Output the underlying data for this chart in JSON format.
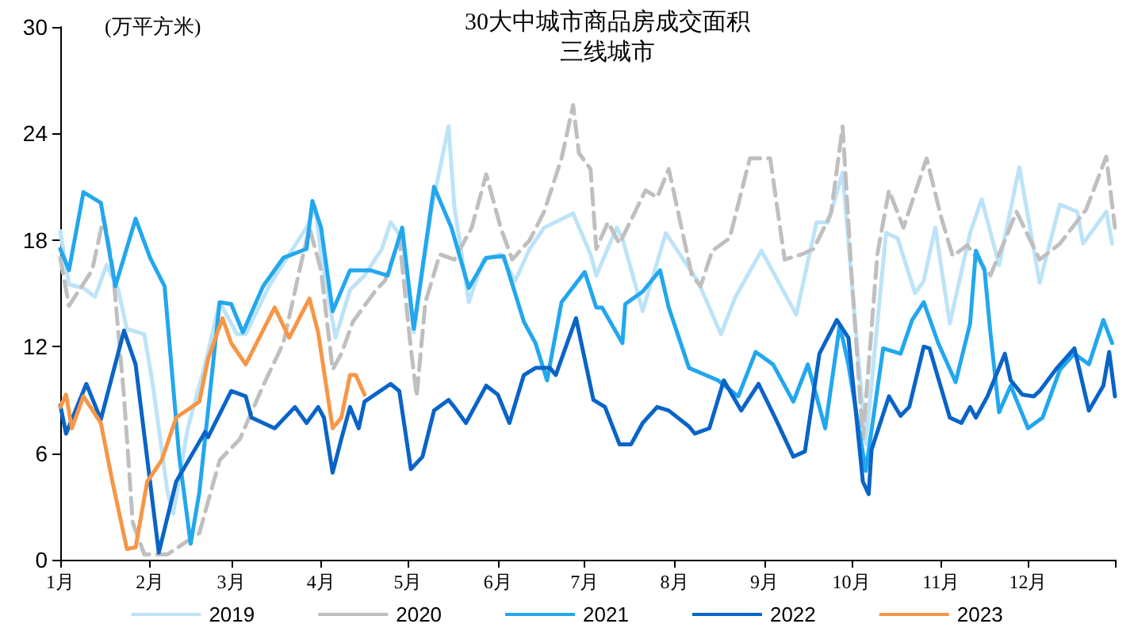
{
  "chart_data": {
    "type": "line",
    "title": "30大中城市商品房成交面积",
    "subtitle": "三线城市",
    "ylabel": "(万平方米)",
    "xlim": [
      "--01-01",
      "--12-31"
    ],
    "xticks": [
      {
        "value": "--01-01",
        "label": "1月"
      },
      {
        "value": "--02-01",
        "label": "2月"
      },
      {
        "value": "--03-01",
        "label": "3月"
      },
      {
        "value": "--04-01",
        "label": "4月"
      },
      {
        "value": "--05-01",
        "label": "5月"
      },
      {
        "value": "--06-01",
        "label": "6月"
      },
      {
        "value": "--07-01",
        "label": "7月"
      },
      {
        "value": "--08-01",
        "label": "8月"
      },
      {
        "value": "--09-01",
        "label": "9月"
      },
      {
        "value": "--10-01",
        "label": "10月"
      },
      {
        "value": "--11-01",
        "label": "11月"
      },
      {
        "value": "--12-01",
        "label": "12月"
      },
      {
        "value": "--12-31",
        "label": null
      }
    ],
    "ylim": [
      0,
      30
    ],
    "yticks": [
      0,
      6,
      12,
      18,
      24,
      30
    ],
    "grid": false,
    "legend": "bottom",
    "marker": "none",
    "line_style": "solid",
    "series": [
      {
        "name": "2019",
        "color": "#bde3f8",
        "x": [
          "--01-01",
          "--01-04",
          "--01-09",
          "--01-13",
          "--01-17",
          "--01-21",
          "--01-24",
          "--01-30",
          "--02-02",
          "--02-07",
          "--02-09",
          "--02-14",
          "--02-20",
          "--02-25",
          "--03-03",
          "--03-06",
          "--03-14",
          "--03-21",
          "--03-27",
          "--03-30",
          "--04-01",
          "--04-06",
          "--04-11",
          "--04-16",
          "--04-22",
          "--04-25",
          "--04-29",
          "--05-03",
          "--05-09",
          "--05-15",
          "--05-17",
          "--05-22",
          "--05-27",
          "--06-02",
          "--06-07",
          "--06-12",
          "--06-17",
          "--06-27",
          "--07-03",
          "--07-05",
          "--07-12",
          "--07-14",
          "--07-21",
          "--07-29",
          "--08-04",
          "--08-09",
          "--08-17",
          "--08-22",
          "--08-31",
          "--09-06",
          "--09-12",
          "--09-19",
          "--09-23",
          "--09-28",
          "--10-02",
          "--10-06",
          "--10-13",
          "--10-17",
          "--10-23",
          "--10-26",
          "--10-30",
          "--11-04",
          "--11-11",
          "--11-15",
          "--11-21",
          "--11-28",
          "--12-05",
          "--12-12",
          "--12-18",
          "--12-20",
          "--12-28",
          "--12-30"
        ],
        "values": [
          18.5,
          15.5,
          15.3,
          14.8,
          16.6,
          15.2,
          13.0,
          12.7,
          9.8,
          3.8,
          2.6,
          7.4,
          11.0,
          14.5,
          12.7,
          12.7,
          15.4,
          17.2,
          18.7,
          19.9,
          17.2,
          12.5,
          15.2,
          16.0,
          17.5,
          19.0,
          18.1,
          12.8,
          19.6,
          24.4,
          19.9,
          14.5,
          16.9,
          17.2,
          15.7,
          17.5,
          18.7,
          19.5,
          17.2,
          16.0,
          18.7,
          18.1,
          14.0,
          18.4,
          16.9,
          15.7,
          12.7,
          14.8,
          17.4,
          15.6,
          13.8,
          19.0,
          19.0,
          21.8,
          14.0,
          6.5,
          18.4,
          18.1,
          15.0,
          15.7,
          18.7,
          13.3,
          18.4,
          20.3,
          16.6,
          22.1,
          15.6,
          20.0,
          19.6,
          17.8,
          19.6,
          17.8
        ]
      },
      {
        "name": "2020",
        "color": "#bfbfbf",
        "line_style": "dashed",
        "x": [
          "--01-01",
          "--01-04",
          "--01-12",
          "--01-16",
          "--01-19",
          "--01-23",
          "--01-26",
          "--01-30",
          "--02-07",
          "--02-18",
          "--02-25",
          "--03-04",
          "--03-12",
          "--03-19",
          "--03-25",
          "--03-28",
          "--04-01",
          "--04-05",
          "--04-08",
          "--04-12",
          "--04-20",
          "--04-23",
          "--04-28",
          "--05-02",
          "--05-04",
          "--05-07",
          "--05-12",
          "--05-17",
          "--05-23",
          "--05-28",
          "--06-02",
          "--06-06",
          "--06-12",
          "--06-17",
          "--06-23",
          "--06-27",
          "--06-29",
          "--07-03",
          "--07-05",
          "--07-09",
          "--07-13",
          "--07-22",
          "--07-26",
          "--07-30",
          "--08-07",
          "--08-10",
          "--08-14",
          "--08-20",
          "--08-27",
          "--09-03",
          "--09-08",
          "--09-14",
          "--09-18",
          "--09-24",
          "--09-28",
          "--10-01",
          "--10-05",
          "--10-10",
          "--10-14",
          "--10-19",
          "--10-27",
          "--11-01",
          "--11-05",
          "--11-10",
          "--11-18",
          "--11-27",
          "--12-05",
          "--12-12",
          "--12-21",
          "--12-28",
          "--12-31"
        ],
        "values": [
          17.0,
          14.3,
          16.3,
          19.3,
          16.6,
          9.2,
          2.1,
          0.3,
          0.3,
          1.5,
          5.6,
          6.8,
          9.8,
          12.2,
          16.6,
          18.7,
          16.3,
          10.7,
          11.6,
          13.4,
          15.2,
          15.7,
          18.1,
          11.9,
          9.2,
          14.5,
          17.2,
          16.9,
          18.7,
          21.7,
          18.7,
          16.9,
          18.0,
          19.6,
          22.6,
          25.6,
          22.9,
          22.0,
          17.5,
          19.0,
          17.8,
          20.8,
          20.4,
          22.0,
          16.0,
          15.4,
          17.4,
          18.1,
          22.6,
          22.6,
          16.9,
          17.2,
          17.5,
          19.5,
          24.4,
          16.3,
          6.8,
          17.2,
          20.8,
          18.7,
          22.6,
          19.3,
          17.1,
          17.7,
          16.0,
          19.6,
          16.9,
          17.8,
          19.7,
          22.7,
          18.7
        ]
      },
      {
        "name": "2021",
        "color": "#22a7ee",
        "x": [
          "--01-01",
          "--01-04",
          "--01-09",
          "--01-15",
          "--01-20",
          "--01-27",
          "--02-01",
          "--02-06",
          "--02-11",
          "--02-15",
          "--02-18",
          "--02-25",
          "--03-01",
          "--03-05",
          "--03-12",
          "--03-19",
          "--03-27",
          "--03-29",
          "--04-01",
          "--04-05",
          "--04-11",
          "--04-18",
          "--04-24",
          "--04-29",
          "--05-03",
          "--05-10",
          "--05-16",
          "--05-22",
          "--05-28",
          "--06-03",
          "--06-10",
          "--06-14",
          "--06-18",
          "--06-23",
          "--07-01",
          "--07-05",
          "--07-07",
          "--07-14",
          "--07-15",
          "--07-21",
          "--07-27",
          "--07-30",
          "--08-06",
          "--08-16",
          "--08-23",
          "--08-29",
          "--09-04",
          "--09-11",
          "--09-16",
          "--09-22",
          "--09-27",
          "--09-30",
          "--10-06",
          "--10-12",
          "--10-18",
          "--10-22",
          "--10-26",
          "--10-31",
          "--11-06",
          "--11-11",
          "--11-13",
          "--11-16",
          "--11-18",
          "--11-21",
          "--11-25",
          "--12-01",
          "--12-06",
          "--12-12",
          "--12-17",
          "--12-22",
          "--12-27",
          "--12-30"
        ],
        "values": [
          17.5,
          16.3,
          20.7,
          20.1,
          15.4,
          19.2,
          17.0,
          15.4,
          5.9,
          0.9,
          3.8,
          14.5,
          14.4,
          12.8,
          15.4,
          17.0,
          17.5,
          20.2,
          18.7,
          14.0,
          16.3,
          16.3,
          16.0,
          18.7,
          13.0,
          21.0,
          18.7,
          15.3,
          17.0,
          17.1,
          13.4,
          12.2,
          10.1,
          14.5,
          16.2,
          14.2,
          14.2,
          12.2,
          14.4,
          15.1,
          16.3,
          14.2,
          10.8,
          10.1,
          9.2,
          11.7,
          11.0,
          8.9,
          11.0,
          7.4,
          13.2,
          11.0,
          5.0,
          11.9,
          11.6,
          13.5,
          14.5,
          12.2,
          10.0,
          13.3,
          17.4,
          16.3,
          12.8,
          8.3,
          9.8,
          7.4,
          8.0,
          10.7,
          11.6,
          11.0,
          13.5,
          12.2
        ]
      },
      {
        "name": "2022",
        "color": "#0a64c8",
        "x": [
          "--01-01",
          "--01-03",
          "--01-10",
          "--01-15",
          "--01-23",
          "--01-27",
          "--02-04",
          "--02-10",
          "--02-20",
          "--02-21",
          "--03-01",
          "--03-06",
          "--03-08",
          "--03-16",
          "--03-23",
          "--03-27",
          "--03-31",
          "--04-02",
          "--04-05",
          "--04-08",
          "--04-11",
          "--04-14",
          "--04-16",
          "--04-25",
          "--04-28",
          "--05-02",
          "--05-06",
          "--05-10",
          "--05-15",
          "--05-17",
          "--05-21",
          "--05-28",
          "--06-01",
          "--06-05",
          "--06-10",
          "--06-14",
          "--06-19",
          "--06-21",
          "--06-28",
          "--07-04",
          "--07-08",
          "--07-13",
          "--07-17",
          "--07-21",
          "--07-26",
          "--07-30",
          "--08-06",
          "--08-08",
          "--08-13",
          "--08-18",
          "--08-24",
          "--08-30",
          "--09-05",
          "--09-11",
          "--09-15",
          "--09-20",
          "--09-26",
          "--09-30",
          "--10-05",
          "--10-07",
          "--10-08",
          "--10-14",
          "--10-18",
          "--10-21",
          "--10-26",
          "--10-28",
          "--11-04",
          "--11-08",
          "--11-11",
          "--11-13",
          "--11-17",
          "--11-20",
          "--11-23",
          "--11-25",
          "--11-29",
          "--12-03",
          "--12-05",
          "--12-11",
          "--12-17",
          "--12-22",
          "--12-27",
          "--12-29",
          "--12-31"
        ],
        "values": [
          8.7,
          7.1,
          9.9,
          7.9,
          12.9,
          11.0,
          0.4,
          4.4,
          7.2,
          6.9,
          9.5,
          9.2,
          8.0,
          7.4,
          8.6,
          7.7,
          8.6,
          8.0,
          4.9,
          6.8,
          8.6,
          7.4,
          8.9,
          9.9,
          9.5,
          5.1,
          5.8,
          8.4,
          9.0,
          8.6,
          7.7,
          9.8,
          9.3,
          7.7,
          10.4,
          10.8,
          10.8,
          10.4,
          13.6,
          9.0,
          8.6,
          6.5,
          6.5,
          7.7,
          8.6,
          8.4,
          7.5,
          7.1,
          7.4,
          10.1,
          8.4,
          9.9,
          7.9,
          5.8,
          6.1,
          11.6,
          13.5,
          12.5,
          4.4,
          3.7,
          6.2,
          9.2,
          8.1,
          8.6,
          12.0,
          11.9,
          8.0,
          7.7,
          8.6,
          8.0,
          9.2,
          10.4,
          11.6,
          10.1,
          9.3,
          9.2,
          9.5,
          10.8,
          11.9,
          8.4,
          9.8,
          11.7,
          9.2
        ]
      },
      {
        "name": "2023",
        "color": "#f79646",
        "x": [
          "--01-01",
          "--01-03",
          "--01-05",
          "--01-09",
          "--01-15",
          "--01-19",
          "--01-24",
          "--01-27",
          "--01-31",
          "--02-05",
          "--02-10",
          "--02-18",
          "--02-21",
          "--02-26",
          "--03-01",
          "--03-06",
          "--03-16",
          "--03-21",
          "--03-28",
          "--03-31",
          "--04-05",
          "--04-08",
          "--04-11",
          "--04-13",
          "--04-16"
        ],
        "values": [
          8.6,
          9.3,
          7.4,
          9.2,
          7.7,
          4.4,
          0.6,
          0.7,
          4.4,
          5.6,
          8.0,
          8.9,
          11.3,
          13.6,
          12.2,
          11.0,
          14.2,
          12.5,
          14.7,
          12.8,
          7.4,
          8.0,
          10.4,
          10.4,
          9.3
        ]
      }
    ]
  }
}
